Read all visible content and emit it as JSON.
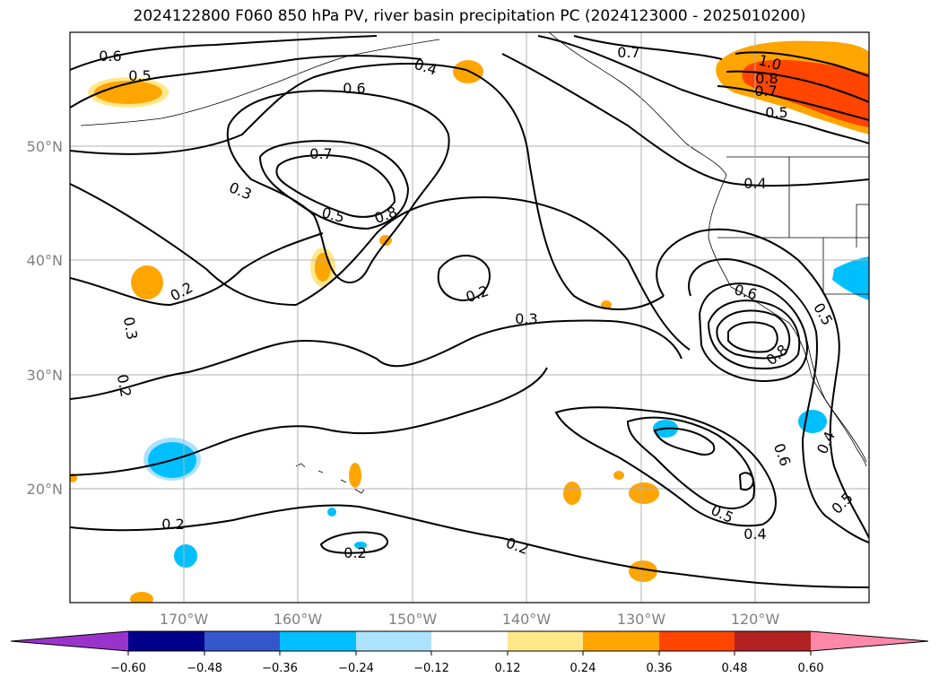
{
  "title": "2024122800 F060 850 hPa PV, river basin precipitation PC (2024123000 - 2025010200)",
  "map": {
    "lon_labels": [
      "170°W",
      "160°W",
      "150°W",
      "140°W",
      "130°W",
      "120°W"
    ],
    "lat_labels": [
      "50°N",
      "40°N",
      "30°N",
      "20°N"
    ],
    "contour_labels": [
      "0.6",
      "0.5",
      "0.4",
      "0.6",
      "0.7",
      "0.7",
      "0.3",
      "0.5",
      "0.8",
      "0.2",
      "0.3",
      "0.2",
      "0.2",
      "0.3",
      "1.0",
      "0.8",
      "0.7",
      "0.5",
      "0.4",
      "0.6",
      "0.5",
      "0.8",
      "0.6",
      "0.4",
      "0.5",
      "0.5",
      "0.4",
      "0.2",
      "0.2",
      "0.2"
    ]
  },
  "colorbar": {
    "colors": [
      "#9a33cc",
      "#00008b",
      "#3358cc",
      "#00bfff",
      "#ade2ff",
      "#ffffff",
      "#ffe88a",
      "#ffa500",
      "#ff4500",
      "#b22222",
      "#ff88aa"
    ],
    "tick_labels": [
      "−0.60",
      "−0.48",
      "−0.36",
      "−0.24",
      "−0.12",
      "0.12",
      "0.24",
      "0.36",
      "0.48",
      "0.60"
    ]
  }
}
